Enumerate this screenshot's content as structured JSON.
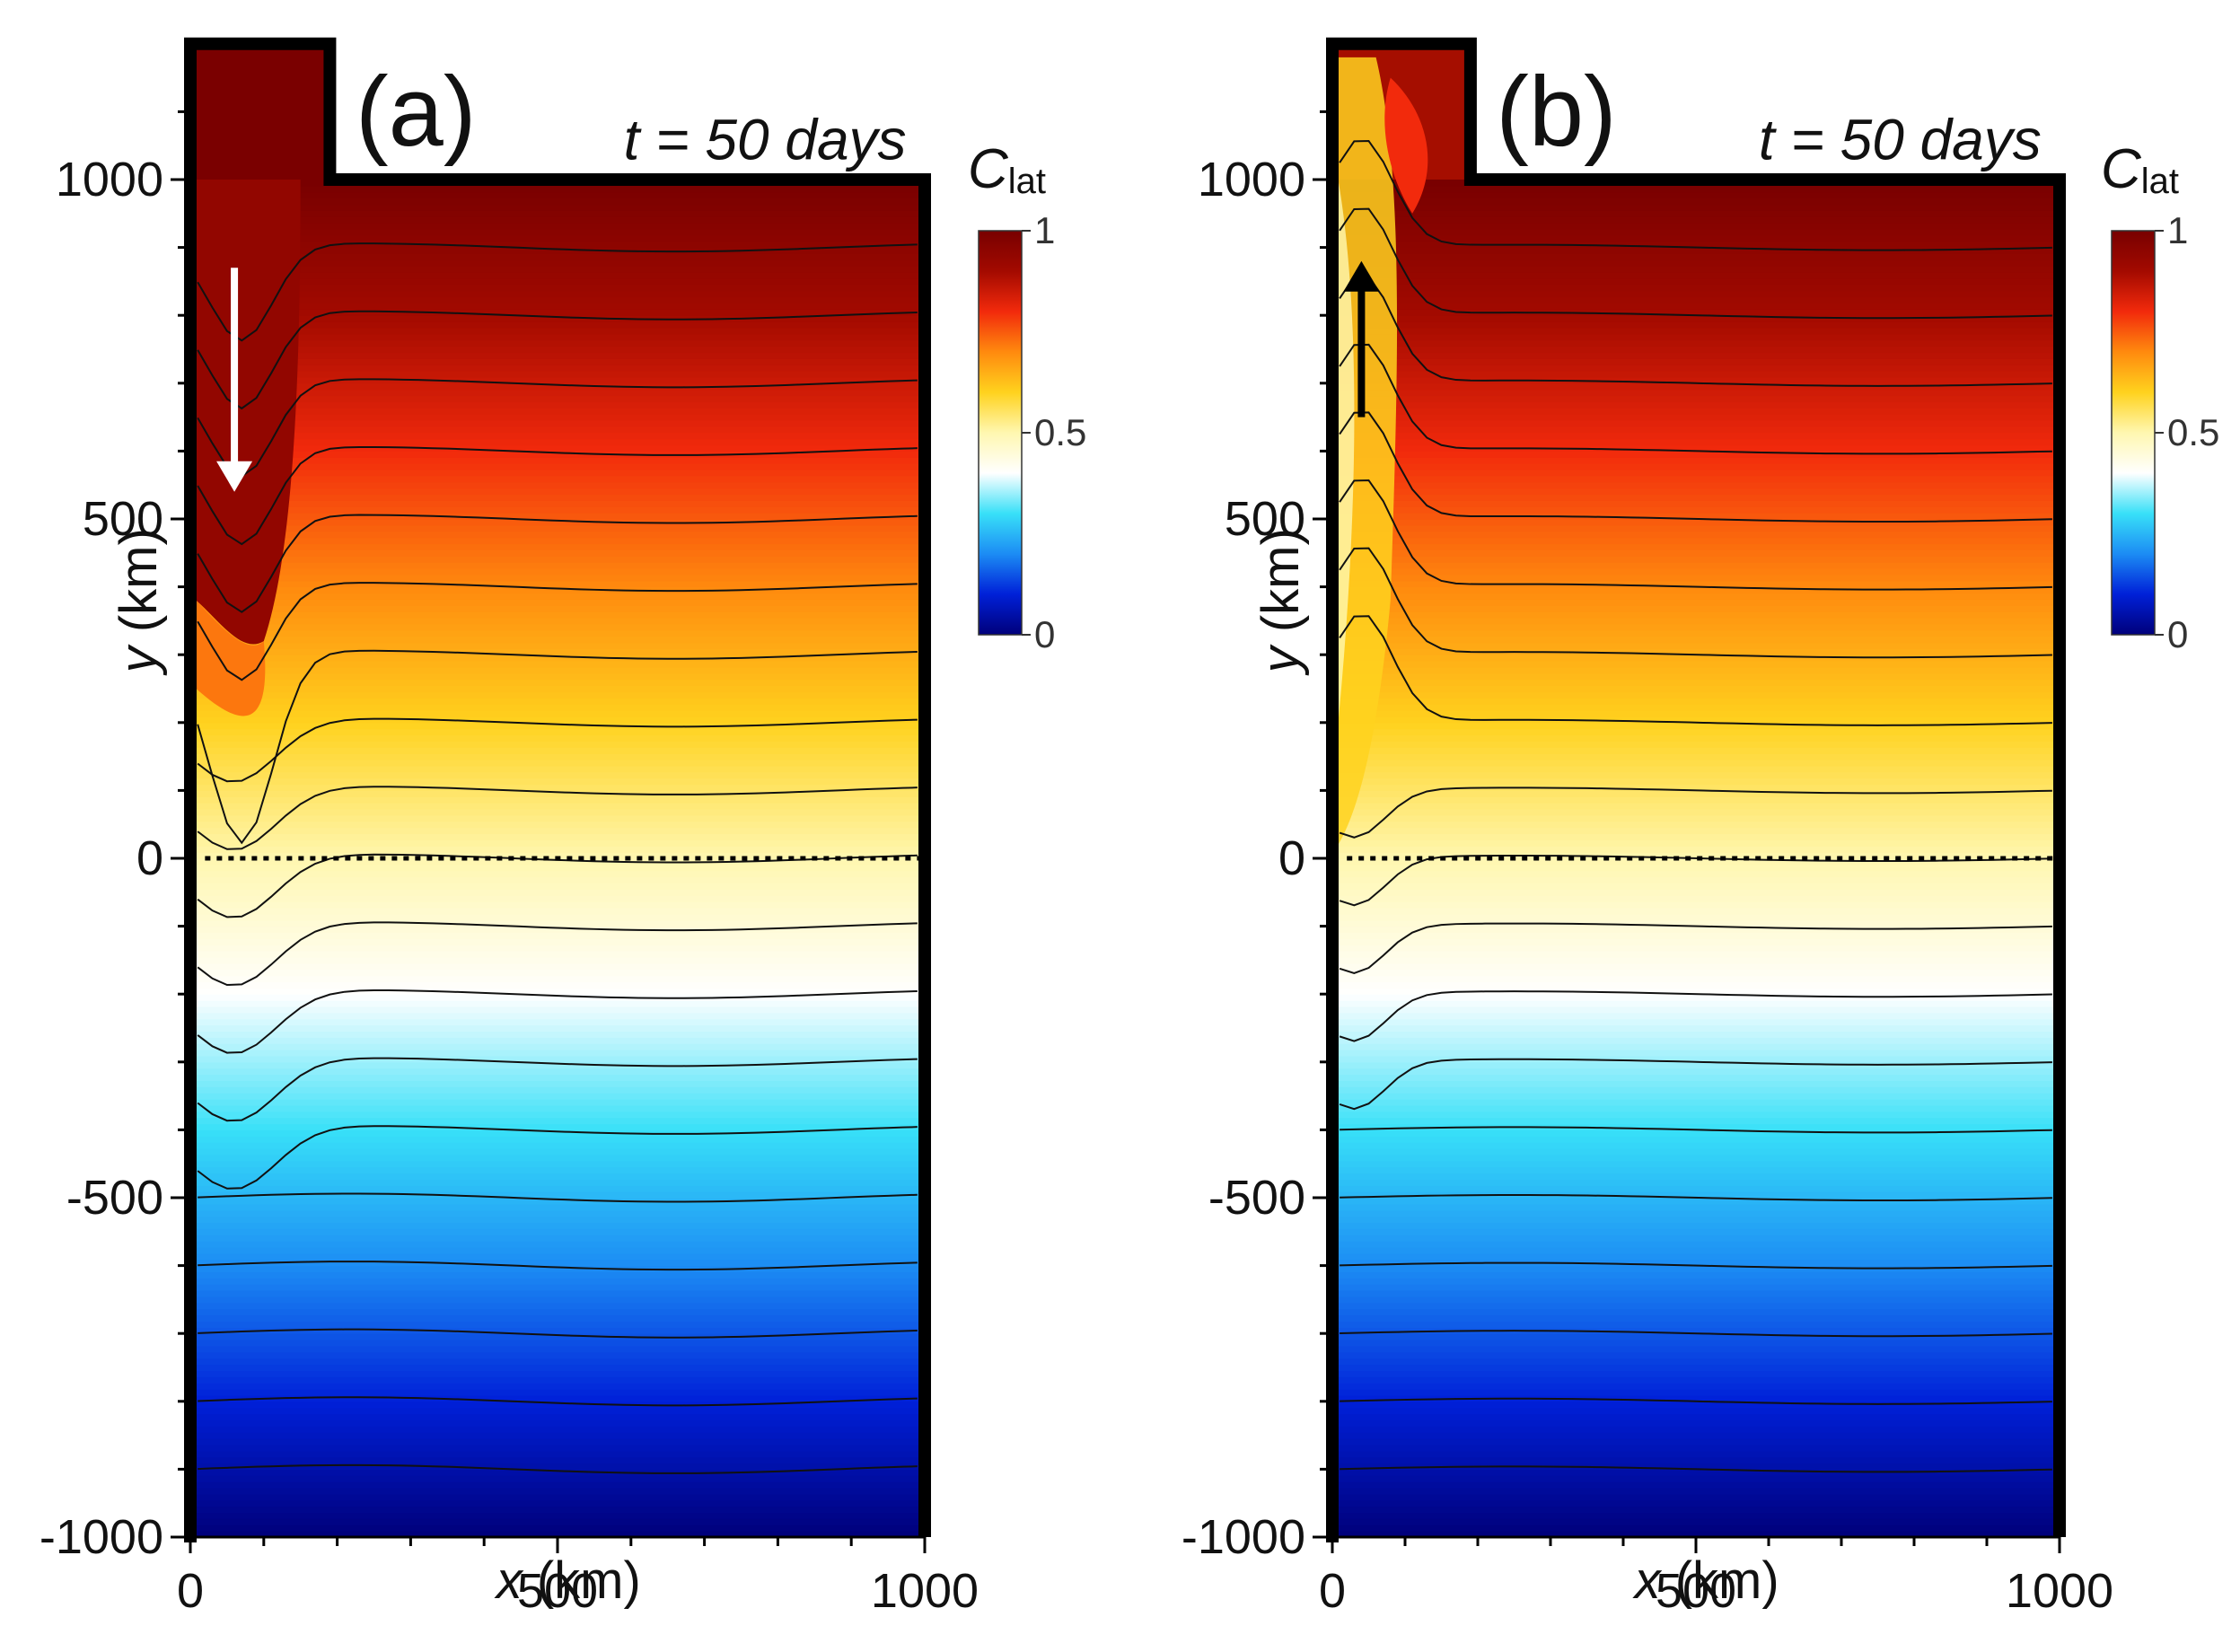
{
  "chart_data": [
    {
      "type": "heatmap",
      "panel_label": "(a)",
      "time_label": "t = 50 days",
      "xlabel_var": "x",
      "xlabel_unit": " (km)",
      "ylabel_var": "y",
      "ylabel_unit": " (km)",
      "xlim": [
        0,
        1000
      ],
      "ylim": [
        -1000,
        1200
      ],
      "x_ticks": [
        0,
        500,
        1000
      ],
      "y_ticks": [
        -1000,
        -500,
        0,
        500,
        1000
      ],
      "colorbar": {
        "var": "C",
        "sub": "lat",
        "range": [
          0,
          1
        ],
        "ticks": [
          0,
          0.5,
          1
        ],
        "colors": [
          "#00007a",
          "#0020d8",
          "#1c8cf4",
          "#38e0f8",
          "#ffffff",
          "#fff7b0",
          "#ffd21e",
          "#ff8a0e",
          "#f22a0c",
          "#a30a00",
          "#780000"
        ]
      },
      "field_description": "C_lat increases linearly from 0 at y=-1000 to 1 at y=1000; coastal channel 0-200 km above y=1000",
      "contour_levels": [
        0.05,
        0.1,
        0.15,
        0.2,
        0.25,
        0.3,
        0.35,
        0.4,
        0.45,
        0.5,
        0.55,
        0.6,
        0.65,
        0.7,
        0.75,
        0.8,
        0.85,
        0.9,
        0.95
      ],
      "dotted_reference_line_y": 0,
      "arrow": {
        "direction": "down",
        "color": "#ffffff",
        "from_y": 870,
        "to_y": 540,
        "x": 60
      },
      "inlet": {
        "x_range": [
          0,
          190
        ],
        "y_top": 1200
      }
    },
    {
      "type": "heatmap",
      "panel_label": "(b)",
      "time_label": "t = 50 days",
      "xlabel_var": "x",
      "xlabel_unit": " (km)",
      "ylabel_var": "y",
      "ylabel_unit": " (km)",
      "xlim": [
        0,
        1000
      ],
      "ylim": [
        -1000,
        1200
      ],
      "x_ticks": [
        0,
        500,
        1000
      ],
      "y_ticks": [
        -1000,
        -500,
        0,
        500,
        1000
      ],
      "colorbar": {
        "var": "C",
        "sub": "lat",
        "range": [
          0,
          1
        ],
        "ticks": [
          0,
          0.5,
          1
        ],
        "colors": [
          "#00007a",
          "#0020d8",
          "#1c8cf4",
          "#38e0f8",
          "#ffffff",
          "#fff7b0",
          "#ffd21e",
          "#ff8a0e",
          "#f22a0c",
          "#a30a00",
          "#780000"
        ]
      },
      "field_description": "C_lat increases linearly from 0 at y=-1000 to 1 at y=1000; low-C water carried northward along western boundary",
      "contour_levels": [
        0.05,
        0.1,
        0.15,
        0.2,
        0.25,
        0.3,
        0.35,
        0.4,
        0.45,
        0.5,
        0.55,
        0.6,
        0.65,
        0.7,
        0.75,
        0.8,
        0.85,
        0.9,
        0.95
      ],
      "dotted_reference_line_y": 0,
      "arrow": {
        "direction": "up",
        "color": "#000000",
        "from_y": 650,
        "to_y": 880,
        "x": 40
      },
      "inlet": {
        "x_range": [
          0,
          190
        ],
        "y_top": 1200
      }
    }
  ]
}
